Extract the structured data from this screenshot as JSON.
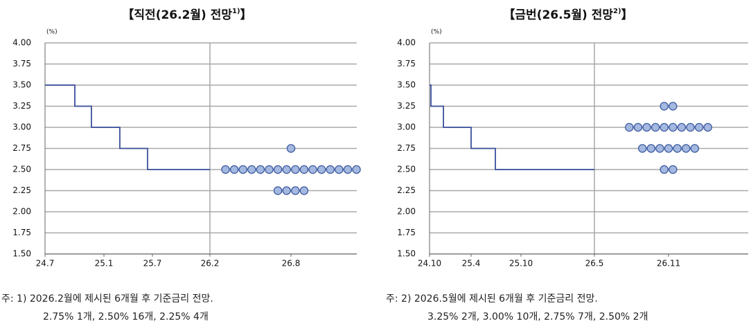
{
  "chart_data": [
    {
      "type": "dot",
      "title": [
        "【직전(26.2월) 전망",
        "1)",
        "】"
      ],
      "y_unit": "(%)",
      "ylim": [
        1.5,
        4.0
      ],
      "yticks": [
        {
          "value": 1.5,
          "label": "1.50"
        },
        1.75,
        {
          "value": 2.0,
          "label": "2.00"
        },
        2.25,
        {
          "value": 2.5,
          "label": "2.50"
        },
        2.75,
        {
          "value": 3.0,
          "label": "3.00"
        },
        3.25,
        {
          "value": 3.5,
          "label": "3.50"
        },
        3.75,
        {
          "value": 4.0,
          "label": "4.00"
        }
      ],
      "xlim": [
        24.5,
        27.083
      ],
      "xticks": [
        {
          "value": 24.5,
          "label": "24.7"
        },
        {
          "value": 25.0,
          "label": "25.1"
        },
        {
          "value": 25.5,
          "label": "25.7"
        },
        {
          "value": 26.083,
          "label": "26.2"
        },
        {
          "value": 26.583,
          "label": "26.8"
        }
      ],
      "step": {
        "color": "#3a4f9a",
        "x": [
          24.5,
          24.753,
          24.894,
          25.164,
          25.45,
          26.083
        ],
        "values": [
          3.5,
          3.25,
          3.0,
          2.75,
          2.5,
          2.5
        ]
      },
      "dots": {
        "color": "#a4b8e0",
        "x": 26.583,
        "values": [
          2.75,
          2.5,
          2.25
        ],
        "counts": [
          1,
          16,
          4
        ]
      },
      "grid": true,
      "note": [
        "주: 1) 2026.2월에 제시된 6개월 후 기준금리 전망.",
        "2.75% 1개, 2.50% 16개, 2.25% 4개"
      ]
    },
    {
      "type": "dot",
      "title": [
        "【금번(26.5월) 전망",
        "2)",
        "】"
      ],
      "y_unit": "(%)",
      "ylim": [
        1.5,
        4.0
      ],
      "yticks": [
        {
          "value": 1.5,
          "label": "1.50"
        },
        1.75,
        {
          "value": 2.0,
          "label": "2.00"
        },
        2.25,
        {
          "value": 2.5,
          "label": "2.50"
        },
        2.75,
        {
          "value": 3.0,
          "label": "3.00"
        },
        3.25,
        {
          "value": 3.5,
          "label": "3.50"
        },
        3.75,
        {
          "value": 4.0,
          "label": "4.00"
        }
      ],
      "xlim": [
        24.75,
        27.333
      ],
      "xticks": [
        {
          "value": 24.75,
          "label": "24.10"
        },
        {
          "value": 25.25,
          "label": "25.4"
        },
        {
          "value": 25.75,
          "label": "25.10"
        },
        {
          "value": 26.333,
          "label": "26.5"
        },
        {
          "value": 26.833,
          "label": "26.11"
        }
      ],
      "step": {
        "color": "#3a4f9a",
        "x": [
          24.75,
          24.767,
          24.917,
          25.25,
          25.493,
          26.333
        ],
        "values": [
          3.5,
          3.25,
          3.0,
          2.75,
          2.5,
          2.5
        ]
      },
      "dots": {
        "color": "#a4b8e0",
        "x": 26.833,
        "values": [
          3.25,
          3.0,
          2.75,
          2.5
        ],
        "counts": [
          2,
          10,
          7,
          2
        ]
      },
      "grid": true,
      "note": [
        "주: 2) 2026.5월에 제시된 6개월 후 기준금리 전망.",
        "3.25% 2개, 3.00% 10개, 2.75% 7개, 2.50% 2개"
      ]
    }
  ]
}
